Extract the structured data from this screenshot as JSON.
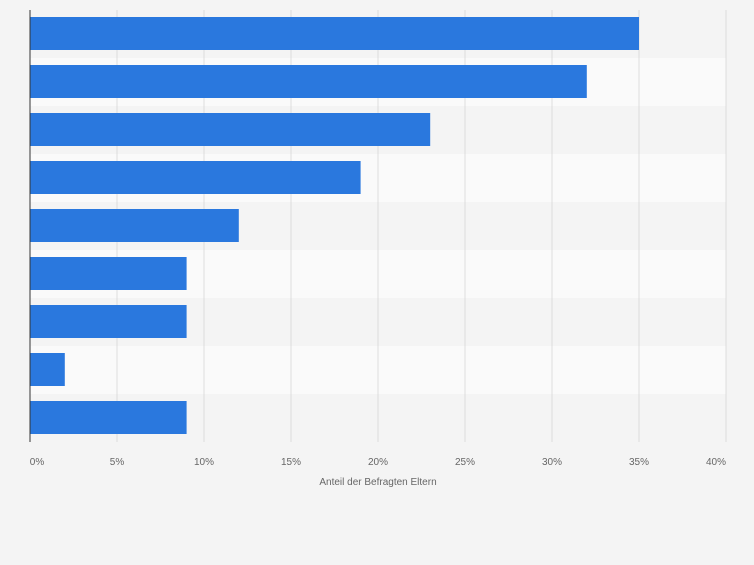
{
  "chart_data": {
    "type": "bar",
    "orientation": "horizontal",
    "categories": [
      "",
      "",
      "",
      "",
      "",
      "",
      "",
      "",
      ""
    ],
    "values": [
      35,
      32,
      23,
      19,
      12,
      9,
      9,
      2,
      9
    ],
    "xlabel": "Anteil der Befragten Eltern",
    "xlim": [
      0,
      40
    ],
    "ticks": [
      0,
      5,
      10,
      15,
      20,
      25,
      30,
      35,
      40
    ],
    "tick_labels": [
      "0%",
      "5%",
      "10%",
      "15%",
      "20%",
      "25%",
      "30%",
      "35%",
      "40%"
    ],
    "grid": true,
    "bar_color": "#2a78de",
    "band_colors": [
      "#f4f4f4",
      "#fafafa"
    ]
  }
}
